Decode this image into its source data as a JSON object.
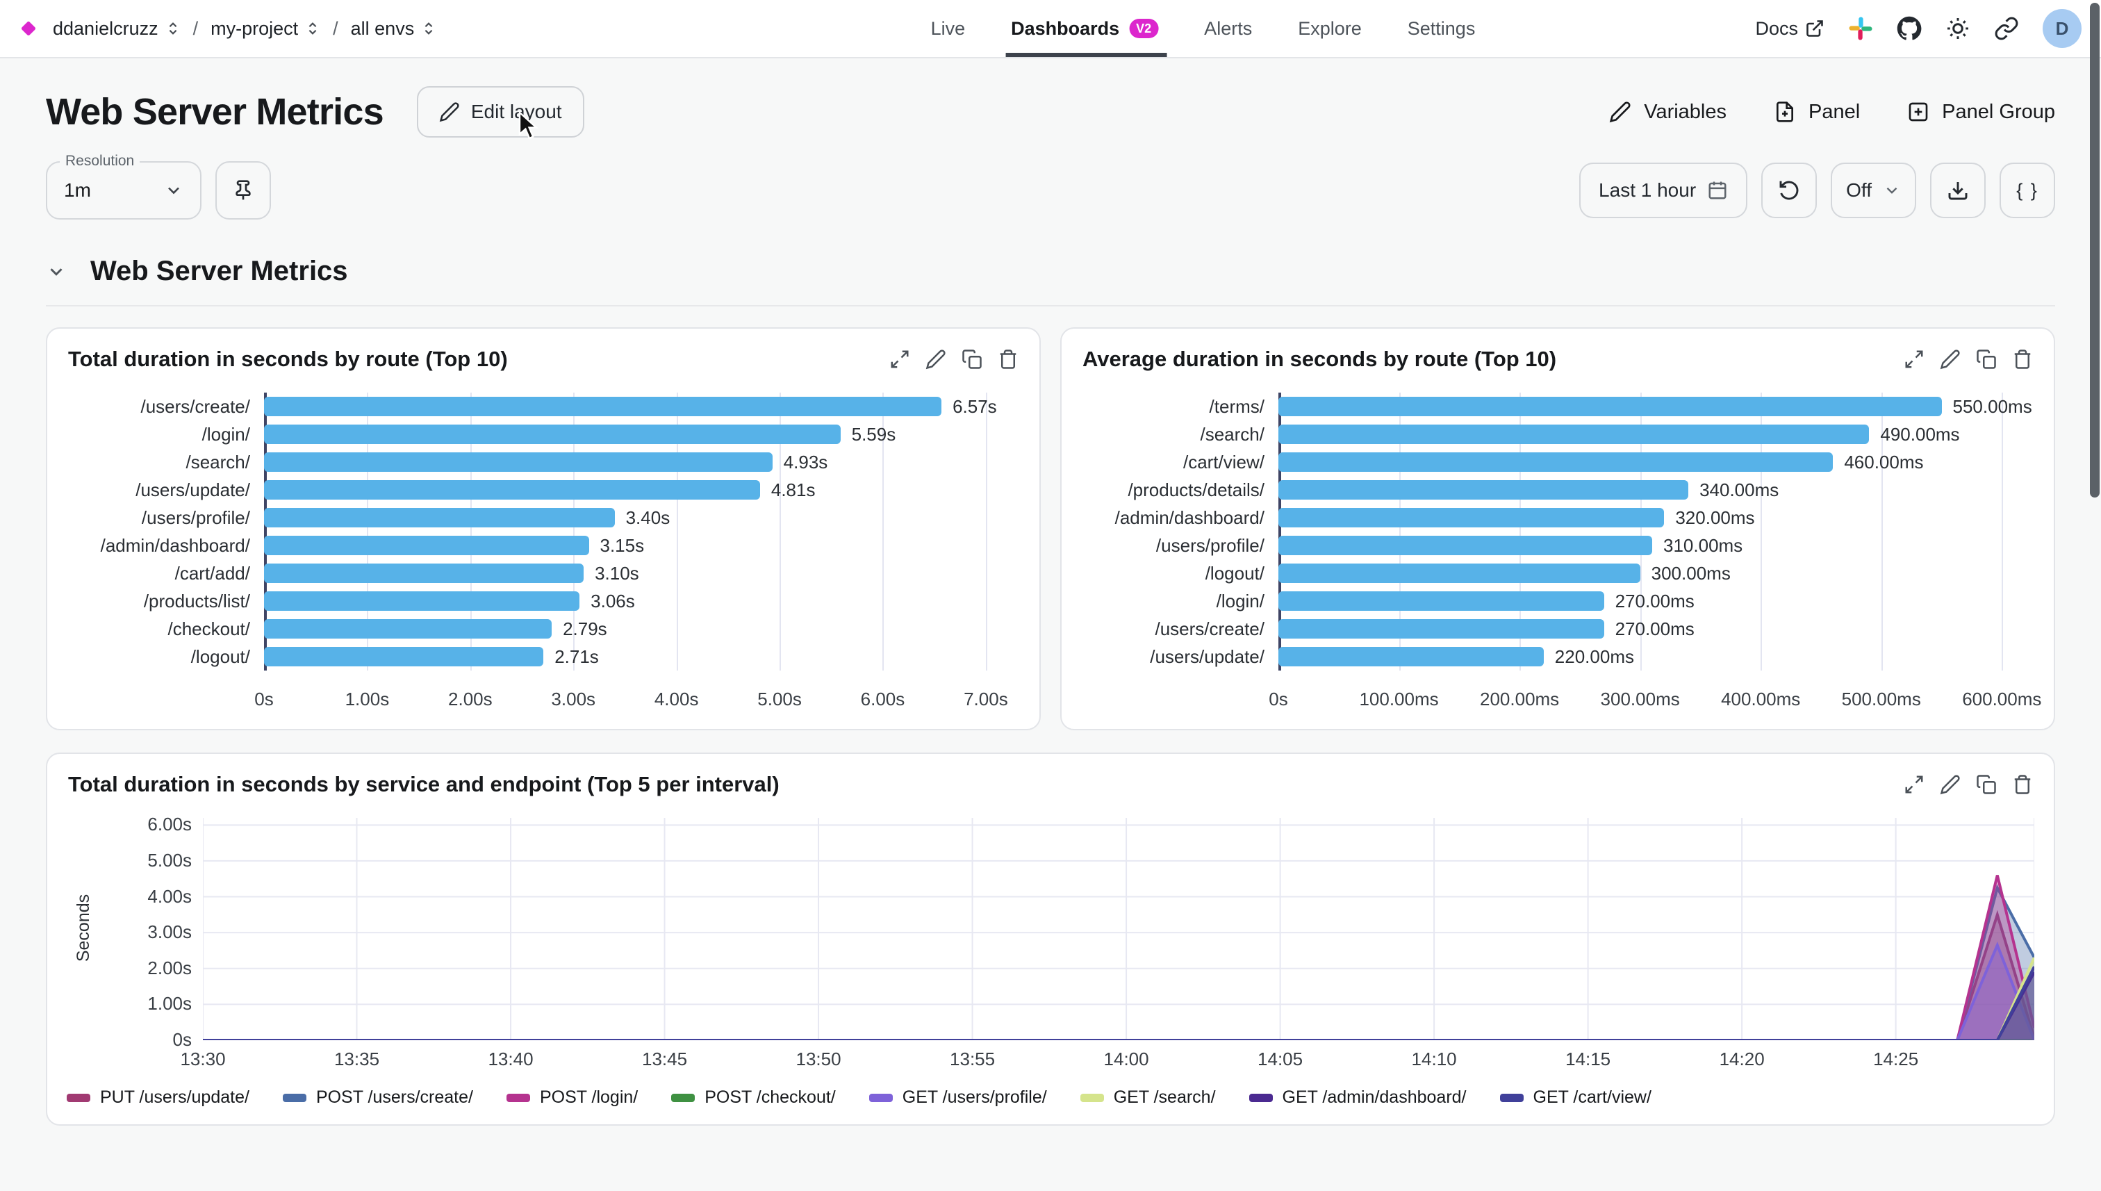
{
  "colors": {
    "brand_magenta": "#dc26cd",
    "bar_blue": "#57b2e8",
    "avatar_bg": "#a7cbf2"
  },
  "nav": {
    "breadcrumb": [
      {
        "label": "ddanielcruzz"
      },
      {
        "label": "my-project"
      },
      {
        "label": "all envs"
      }
    ],
    "separator": "/",
    "tabs": [
      {
        "label": "Live",
        "active": false
      },
      {
        "label": "Dashboards",
        "active": true,
        "badge": "V2"
      },
      {
        "label": "Alerts",
        "active": false
      },
      {
        "label": "Explore",
        "active": false
      },
      {
        "label": "Settings",
        "active": false
      }
    ],
    "docs_label": "Docs",
    "icons": [
      "external-link-icon",
      "slack-icon",
      "github-icon",
      "sun-icon",
      "link-icon"
    ],
    "avatar_initial": "D"
  },
  "header": {
    "title": "Web Server Metrics",
    "edit_layout_label": "Edit layout",
    "actions": [
      {
        "label": "Variables",
        "icon": "pencil-icon"
      },
      {
        "label": "Panel",
        "icon": "file-plus-icon"
      },
      {
        "label": "Panel Group",
        "icon": "square-plus-icon"
      }
    ]
  },
  "toolbar": {
    "resolution_label": "Resolution",
    "resolution_value": "1m",
    "pin_icon": "pin-icon",
    "time_range_label": "Last 1 hour",
    "refresh_icon": "rotate-ccw-icon",
    "auto_refresh_value": "Off",
    "download_icon": "download-icon",
    "code_button_label": "{ }"
  },
  "section": {
    "title": "Web Server Metrics"
  },
  "panel_icons": [
    "expand-icon",
    "edit-icon",
    "copy-icon",
    "delete-icon"
  ],
  "chart_data": [
    {
      "type": "bar",
      "orientation": "horizontal",
      "title": "Total duration in seconds by route (Top 10)",
      "categories": [
        "/users/create/",
        "/login/",
        "/search/",
        "/users/update/",
        "/users/profile/",
        "/admin/dashboard/",
        "/cart/add/",
        "/products/list/",
        "/checkout/",
        "/logout/"
      ],
      "values": [
        6.57,
        5.59,
        4.93,
        4.81,
        3.4,
        3.15,
        3.1,
        3.06,
        2.79,
        2.71
      ],
      "value_labels": [
        "6.57s",
        "5.59s",
        "4.93s",
        "4.81s",
        "3.40s",
        "3.15s",
        "3.10s",
        "3.06s",
        "2.79s",
        "2.71s"
      ],
      "bar_color": "#57b2e8",
      "xlim": [
        0,
        7.25
      ],
      "grid": true,
      "x_ticks": [
        {
          "v": 0,
          "label": "0s"
        },
        {
          "v": 1,
          "label": "1.00s"
        },
        {
          "v": 2,
          "label": "2.00s"
        },
        {
          "v": 3,
          "label": "3.00s"
        },
        {
          "v": 4,
          "label": "4.00s"
        },
        {
          "v": 5,
          "label": "5.00s"
        },
        {
          "v": 6,
          "label": "6.00s"
        },
        {
          "v": 7,
          "label": "7.00s"
        }
      ]
    },
    {
      "type": "bar",
      "orientation": "horizontal",
      "title": "Average duration in seconds by route (Top 10)",
      "categories": [
        "/terms/",
        "/search/",
        "/cart/view/",
        "/products/details/",
        "/admin/dashboard/",
        "/users/profile/",
        "/logout/",
        "/login/",
        "/users/create/",
        "/users/update/"
      ],
      "values": [
        550,
        490,
        460,
        340,
        320,
        310,
        300,
        270,
        270,
        220
      ],
      "value_labels": [
        "550.00ms",
        "490.00ms",
        "460.00ms",
        "340.00ms",
        "320.00ms",
        "310.00ms",
        "300.00ms",
        "270.00ms",
        "270.00ms",
        "220.00ms"
      ],
      "bar_color": "#57b2e8",
      "xlim": [
        0,
        620
      ],
      "grid": true,
      "x_ticks": [
        {
          "v": 0,
          "label": "0s"
        },
        {
          "v": 100,
          "label": "100.00ms"
        },
        {
          "v": 200,
          "label": "200.00ms"
        },
        {
          "v": 300,
          "label": "300.00ms"
        },
        {
          "v": 400,
          "label": "400.00ms"
        },
        {
          "v": 500,
          "label": "500.00ms"
        },
        {
          "v": 600,
          "label": "600.00ms"
        }
      ]
    },
    {
      "type": "area",
      "title": "Total duration in seconds by service and endpoint (Top 5 per interval)",
      "ylabel": "Seconds",
      "ylim": [
        0,
        6.2
      ],
      "xlim": [
        0,
        59.5
      ],
      "grid": true,
      "legend_position": "bottom",
      "y_ticks": [
        {
          "v": 0,
          "label": "0s"
        },
        {
          "v": 1,
          "label": "1.00s"
        },
        {
          "v": 2,
          "label": "2.00s"
        },
        {
          "v": 3,
          "label": "3.00s"
        },
        {
          "v": 4,
          "label": "4.00s"
        },
        {
          "v": 5,
          "label": "5.00s"
        },
        {
          "v": 6,
          "label": "6.00s"
        }
      ],
      "x_ticks": [
        {
          "v": 0,
          "label": "13:30"
        },
        {
          "v": 5,
          "label": "13:35"
        },
        {
          "v": 10,
          "label": "13:40"
        },
        {
          "v": 15,
          "label": "13:45"
        },
        {
          "v": 20,
          "label": "13:50"
        },
        {
          "v": 25,
          "label": "13:55"
        },
        {
          "v": 30,
          "label": "14:00"
        },
        {
          "v": 35,
          "label": "14:05"
        },
        {
          "v": 40,
          "label": "14:10"
        },
        {
          "v": 45,
          "label": "14:15"
        },
        {
          "v": 50,
          "label": "14:20"
        },
        {
          "v": 55,
          "label": "14:25"
        }
      ],
      "series": [
        {
          "name": "PUT /users/update/",
          "color": "#a13a72",
          "points": [
            [
              0,
              0
            ],
            [
              57,
              0
            ],
            [
              58.3,
              3.5
            ],
            [
              59.5,
              0.05
            ]
          ]
        },
        {
          "name": "POST /users/create/",
          "color": "#4a6da7",
          "points": [
            [
              0,
              0
            ],
            [
              57,
              0
            ],
            [
              58.3,
              4.25
            ],
            [
              59.5,
              2.3
            ]
          ]
        },
        {
          "name": "POST /login/",
          "color": "#b5338f",
          "points": [
            [
              0,
              0
            ],
            [
              57,
              0
            ],
            [
              58.3,
              4.6
            ],
            [
              59.5,
              0.35
            ]
          ]
        },
        {
          "name": "POST /checkout/",
          "color": "#3f9142",
          "points": [
            [
              0,
              0
            ],
            [
              57,
              0
            ],
            [
              59.5,
              0
            ]
          ]
        },
        {
          "name": "GET /users/profile/",
          "color": "#7e62d9",
          "points": [
            [
              0,
              0
            ],
            [
              57,
              0
            ],
            [
              58.3,
              2.65
            ],
            [
              59.5,
              0
            ]
          ]
        },
        {
          "name": "GET /search/",
          "color": "#d5e48c",
          "points": [
            [
              0,
              0
            ],
            [
              58.3,
              0
            ],
            [
              59.5,
              2.3
            ]
          ]
        },
        {
          "name": "GET /admin/dashboard/",
          "color": "#4b2a91",
          "points": [
            [
              0,
              0
            ],
            [
              58.3,
              0
            ],
            [
              59.5,
              1.9
            ]
          ]
        },
        {
          "name": "GET /cart/view/",
          "color": "#40409a",
          "points": [
            [
              0,
              0
            ],
            [
              58.3,
              0
            ],
            [
              59.5,
              2.05
            ]
          ]
        }
      ]
    }
  ]
}
